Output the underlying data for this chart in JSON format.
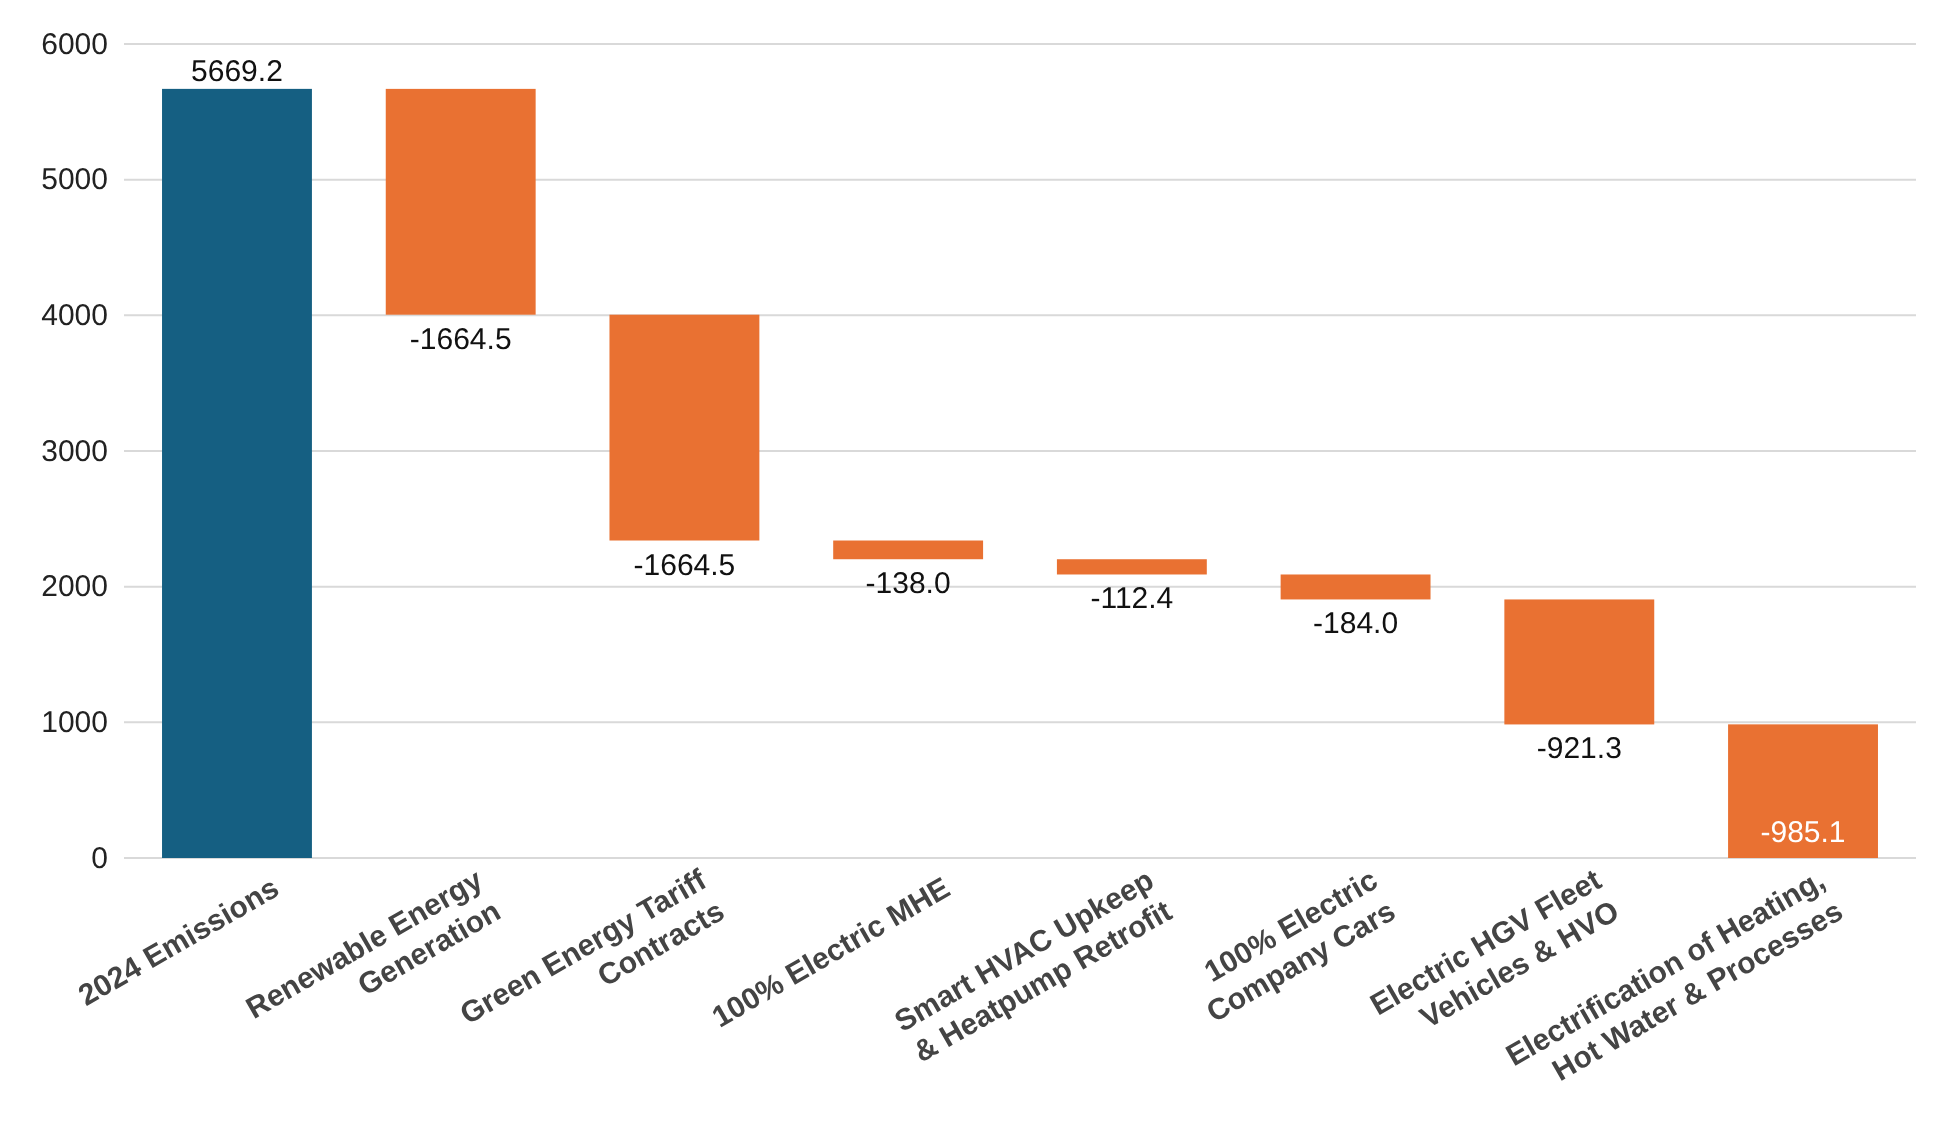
{
  "chart_data": {
    "type": "bar",
    "categories": [
      "2024 Emissions",
      "Renewable Energy\nGeneration",
      "Green Energy Tariff\nContracts",
      "100% Electric MHE",
      "Smart HVAC Upkeep\n& Heatpump Retrofit",
      "100% Electric\nCompany Cars",
      "Electric HGV Fleet\nVehicles & HVO",
      "Electrification of Heating,\nHot Water & Processes"
    ],
    "values": [
      5669.2,
      -1664.5,
      -1664.5,
      -138.0,
      -112.4,
      -184.0,
      -921.3,
      -985.1
    ],
    "base": [
      0,
      5669.2,
      4004.7,
      2340.2,
      2202.2,
      2089.8,
      1905.8,
      985.1
    ],
    "colors": [
      "#155f82",
      "#e97132",
      "#e97132",
      "#e97132",
      "#e97132",
      "#e97132",
      "#e97132",
      "#e97132"
    ],
    "value_labels": [
      "5669.2",
      "-1664.5",
      "-1664.5",
      "-138.0",
      "-112.4",
      "-184.0",
      "-921.3",
      "-985.1"
    ],
    "ylim": [
      0,
      6000
    ],
    "yticks": [
      0,
      1000,
      2000,
      3000,
      4000,
      5000,
      6000
    ],
    "grid": "y"
  }
}
